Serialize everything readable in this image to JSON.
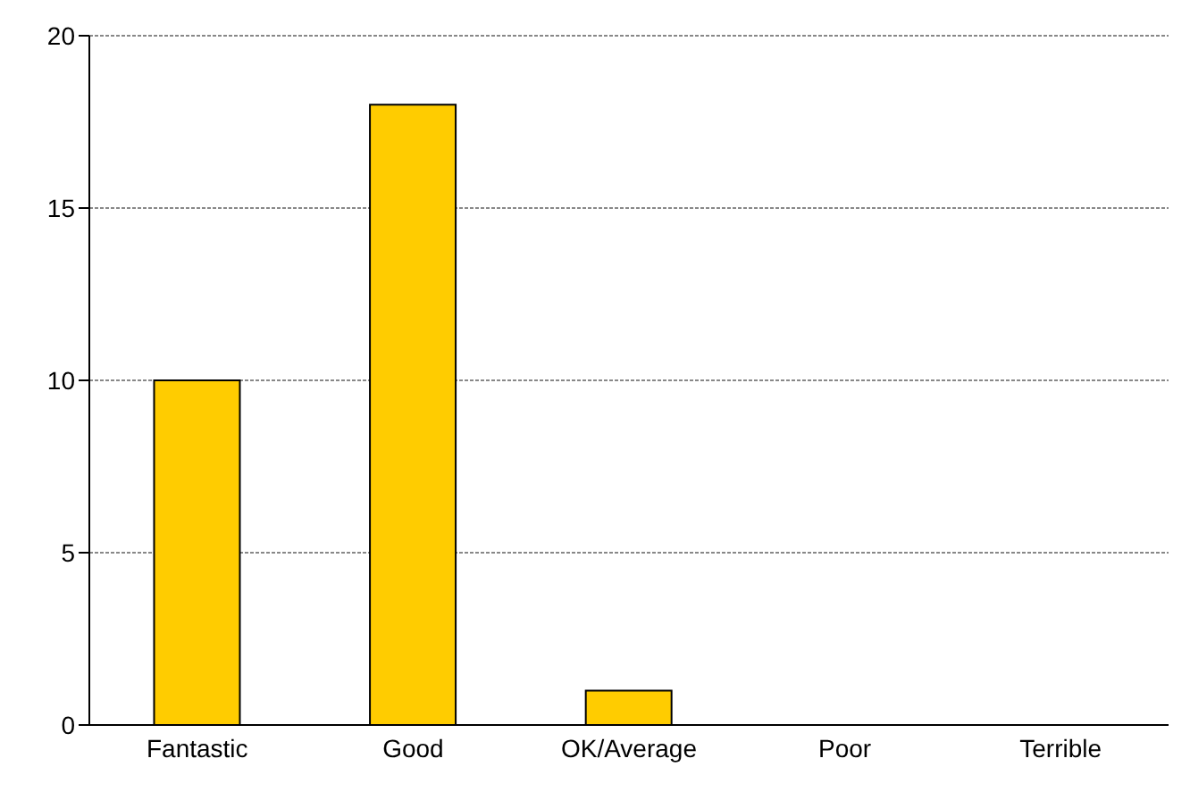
{
  "chart_data": {
    "type": "bar",
    "categories": [
      "Fantastic",
      "Good",
      "OK/Average",
      "Poor",
      "Terrible"
    ],
    "values": [
      10,
      18,
      1,
      0,
      0
    ],
    "color": "#ffcc00",
    "ylim": [
      0,
      20
    ],
    "yticks": [
      0,
      5,
      10,
      15,
      20
    ],
    "grid": "y"
  }
}
